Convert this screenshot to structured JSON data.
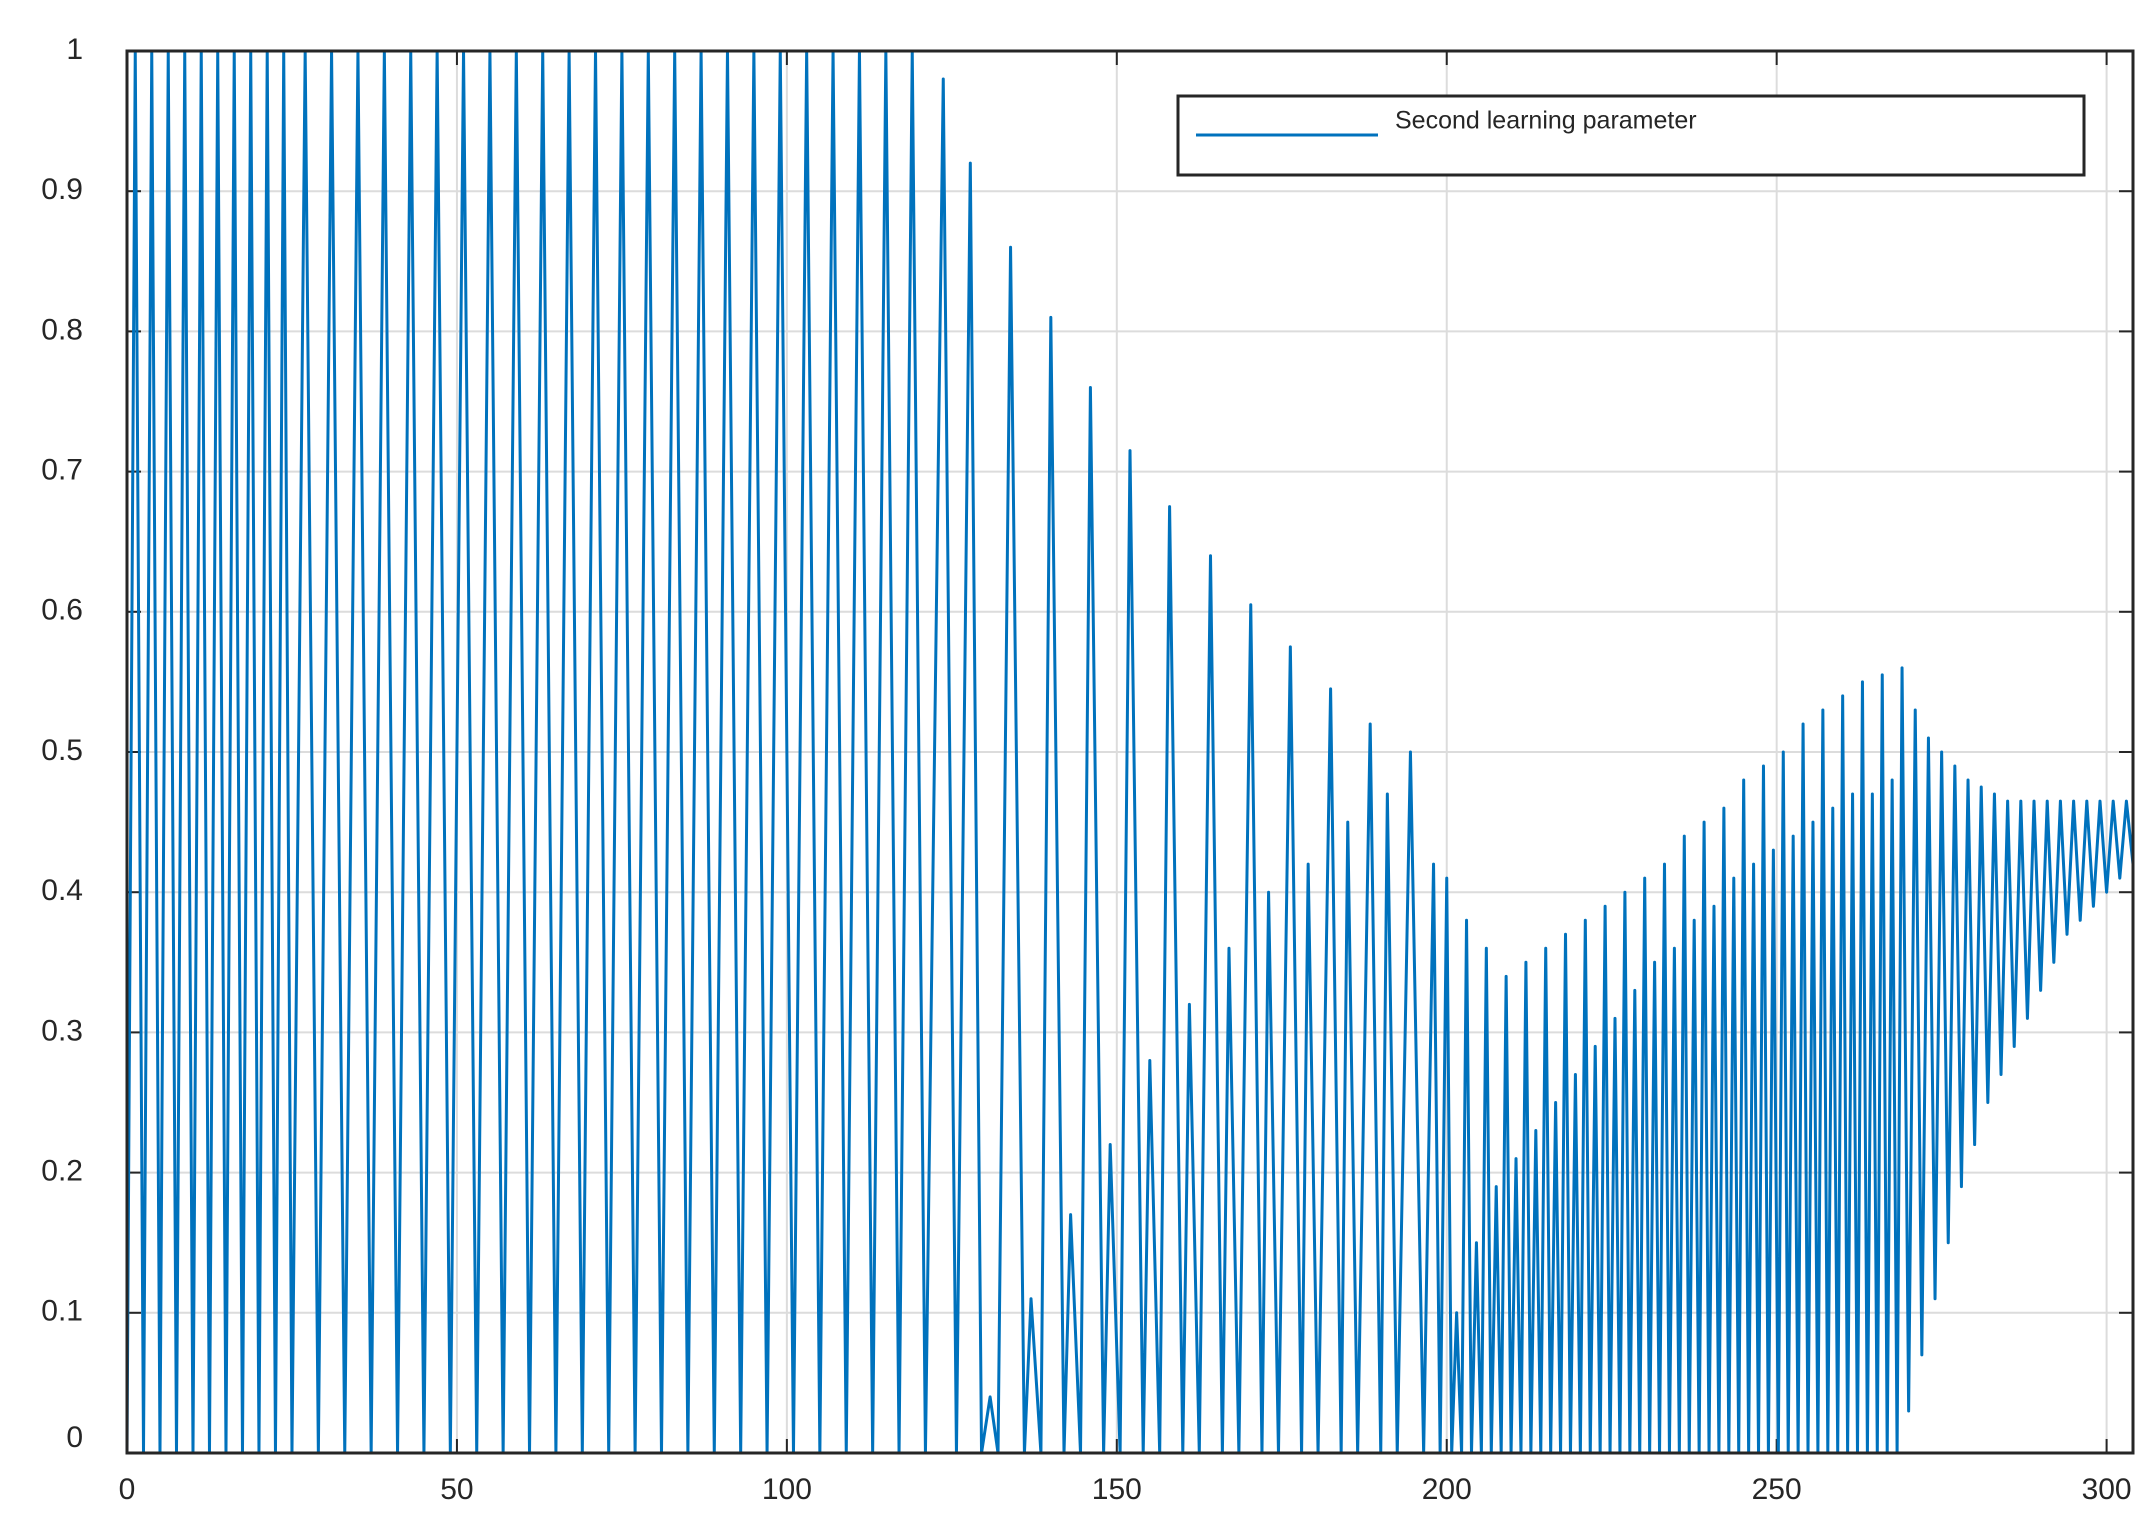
{
  "chart_data": {
    "type": "line",
    "x": [
      0,
      1.25,
      2.5,
      3.75,
      5,
      6.25,
      7.5,
      8.75,
      10,
      11.25,
      12.5,
      13.75,
      15,
      16.25,
      17.5,
      18.75,
      20,
      21.25,
      22.5,
      23.75,
      25,
      27,
      29,
      31,
      33,
      35,
      37,
      39,
      41,
      43,
      45,
      47,
      49,
      51,
      53,
      55,
      57,
      59,
      61,
      63,
      65,
      67,
      69,
      71,
      73,
      75,
      77,
      79,
      81,
      83,
      85,
      87,
      89,
      91,
      93,
      95,
      97,
      99,
      101,
      103,
      105,
      107,
      109,
      111,
      113,
      115,
      117,
      119,
      121,
      123.7,
      125.7,
      127.8,
      129.5,
      130.8,
      132,
      133.9,
      136,
      137,
      138.5,
      140,
      142,
      143,
      144.5,
      146,
      148,
      149,
      150.5,
      152,
      154,
      155,
      156.5,
      158,
      160,
      161,
      162.5,
      164.2,
      166,
      167,
      168.5,
      170.3,
      172,
      173,
      174.5,
      176.3,
      178,
      179,
      180.5,
      182.4,
      184,
      185,
      186.5,
      188.4,
      190,
      191,
      192.5,
      194.5,
      196.5,
      198,
      199,
      200,
      200.75,
      201.5,
      202.25,
      203,
      203.75,
      204.5,
      205.25,
      206,
      206.75,
      207.5,
      208.25,
      209,
      209.75,
      210.5,
      211.25,
      212,
      212.75,
      213.5,
      214.25,
      215,
      215.75,
      216.5,
      217.25,
      218,
      218.75,
      219.5,
      220.25,
      221,
      221.75,
      222.5,
      223.25,
      224,
      224.75,
      225.5,
      226.25,
      227,
      227.75,
      228.5,
      229.25,
      230,
      230.75,
      231.5,
      232.25,
      233,
      233.75,
      234.5,
      235.25,
      236,
      236.75,
      237.5,
      238.25,
      239,
      239.75,
      240.5,
      241.25,
      242,
      242.75,
      243.5,
      244.25,
      245,
      245.75,
      246.5,
      247.25,
      248,
      248.75,
      249.5,
      250.25,
      251,
      251.75,
      252.5,
      253.25,
      254,
      254.75,
      255.5,
      256.25,
      257,
      257.75,
      258.5,
      259.25,
      260,
      260.75,
      261.5,
      262.25,
      263,
      263.75,
      264.5,
      265.25,
      266,
      266.75,
      267.5,
      268.25,
      269,
      270,
      271,
      272,
      273,
      274,
      275,
      276,
      277,
      278,
      279,
      280,
      281,
      282,
      283,
      284,
      285,
      286,
      287,
      288,
      289,
      290,
      291,
      292,
      293,
      294,
      295,
      296,
      297,
      298,
      299,
      300,
      301,
      302,
      303,
      304
    ],
    "series": [
      {
        "name": "Second learning parameter",
        "color": "#0072bd",
        "values": [
          0,
          1,
          0,
          1,
          0,
          1,
          0,
          1,
          0,
          1,
          0,
          1,
          0,
          1,
          0,
          1,
          0,
          1,
          0,
          1,
          0,
          1,
          0,
          1,
          0,
          1,
          0,
          1,
          0,
          1,
          0,
          1,
          0,
          1,
          0,
          1,
          0,
          1,
          0,
          1,
          0,
          1,
          0,
          1,
          0,
          1,
          0,
          1,
          0,
          1,
          0,
          1,
          0,
          1,
          0,
          1,
          0,
          1,
          0,
          1,
          0,
          1,
          0,
          1,
          0,
          1,
          0,
          1,
          0,
          0.98,
          0,
          0.92,
          0,
          0.04,
          0,
          0.86,
          0,
          0.11,
          0,
          0.81,
          0,
          0.17,
          0,
          0.76,
          0,
          0.22,
          0,
          0.715,
          0,
          0.28,
          0,
          0.675,
          0,
          0.32,
          0,
          0.64,
          0,
          0.36,
          0,
          0.605,
          0,
          0.4,
          0,
          0.575,
          0,
          0.42,
          0,
          0.545,
          0,
          0.45,
          0,
          0.52,
          0,
          0.47,
          0,
          0.5,
          0,
          0.42,
          0,
          0.41,
          0,
          0.1,
          0,
          0.38,
          0,
          0.15,
          0,
          0.36,
          0,
          0.19,
          0,
          0.34,
          0,
          0.21,
          0,
          0.35,
          0,
          0.23,
          0,
          0.36,
          0,
          0.25,
          0,
          0.37,
          0,
          0.27,
          0,
          0.38,
          0,
          0.29,
          0,
          0.39,
          0,
          0.31,
          0,
          0.4,
          0,
          0.33,
          0,
          0.41,
          0,
          0.35,
          0,
          0.42,
          0,
          0.36,
          0,
          0.44,
          0,
          0.38,
          0,
          0.45,
          0,
          0.39,
          0,
          0.46,
          0,
          0.41,
          0,
          0.48,
          0,
          0.42,
          0,
          0.49,
          0,
          0.43,
          0,
          0.5,
          0,
          0.44,
          0,
          0.52,
          0,
          0.45,
          0,
          0.53,
          0,
          0.46,
          0,
          0.54,
          0,
          0.47,
          0,
          0.55,
          0,
          0.47,
          0,
          0.555,
          0,
          0.48,
          0,
          0.56,
          0.03,
          0.53,
          0.07,
          0.51,
          0.11,
          0.5,
          0.15,
          0.49,
          0.19,
          0.48,
          0.22,
          0.475,
          0.25,
          0.47,
          0.27,
          0.465,
          0.29,
          0.465,
          0.31,
          0.465,
          0.33,
          0.465,
          0.35,
          0.465,
          0.37,
          0.465,
          0.38,
          0.465,
          0.39,
          0.465,
          0.4,
          0.465,
          0.41,
          0.465,
          0.42
        ]
      }
    ],
    "xlim": [
      0,
      304
    ],
    "xticks": [
      0,
      50,
      100,
      150,
      200,
      250,
      300
    ],
    "ylim": [
      0,
      1
    ],
    "yticks": [
      0,
      0.1,
      0.2,
      0.3,
      0.4,
      0.5,
      0.6,
      0.7,
      0.8,
      0.9,
      1
    ],
    "grid": true,
    "legend": "top-right"
  }
}
